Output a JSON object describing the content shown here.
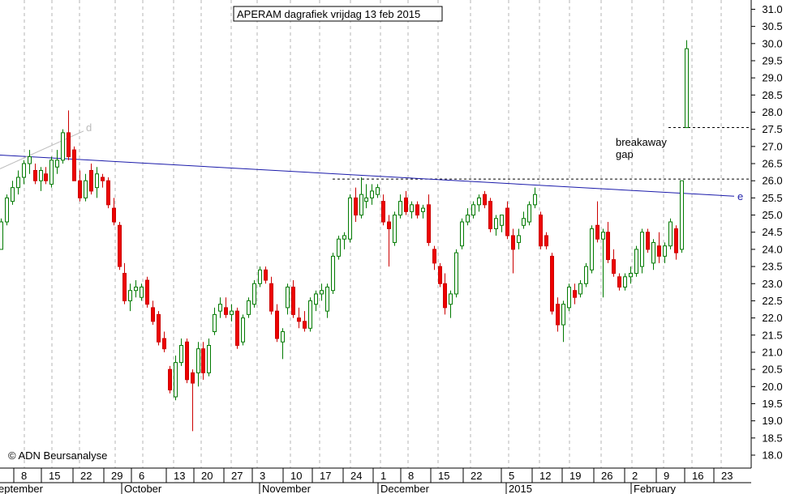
{
  "chart_data": {
    "type": "candlestick",
    "title": "APERAM dagrafiek vrijdag 13 feb 2015",
    "copyright": "© ADN Beursanalyse",
    "ylim": [
      17.5,
      31.2
    ],
    "y_ticks": [
      "18.0",
      "18.5",
      "19.0",
      "19.5",
      "20.0",
      "20.5",
      "21.0",
      "21.5",
      "22.0",
      "22.5",
      "23.0",
      "23.5",
      "24.0",
      "24.5",
      "25.0",
      "25.5",
      "26.0",
      "26.5",
      "27.0",
      "27.5",
      "28.0",
      "28.5",
      "29.0",
      "29.5",
      "30.0",
      "30.5",
      "31.0"
    ],
    "x_day_labels": [
      "8",
      "15",
      "22",
      "29",
      "6",
      "13",
      "20",
      "27",
      "3",
      "10",
      "17",
      "24",
      "1",
      "8",
      "15",
      "22",
      "5",
      "12",
      "19",
      "26",
      "2",
      "9",
      "16",
      "23"
    ],
    "x_month_labels": [
      "eptember",
      "October",
      "November",
      "December",
      "2015",
      "February"
    ],
    "annotations": {
      "breakaway_gap": [
        "breakaway",
        "gap"
      ],
      "trendline_e": "e",
      "trendline_d": "d"
    },
    "levels": {
      "gap_top": 27.55,
      "gap_bottom": 26.05
    },
    "trendline_e": {
      "start": 26.75,
      "end": 25.55
    },
    "trendline_d": {
      "start": 26.35,
      "end": 27.45
    },
    "candles": [
      {
        "o": 24.0,
        "h": 24.9,
        "l": 24.0,
        "c": 24.8
      },
      {
        "o": 24.8,
        "h": 25.6,
        "l": 24.7,
        "c": 25.5
      },
      {
        "o": 25.4,
        "h": 26.0,
        "l": 25.3,
        "c": 25.8
      },
      {
        "o": 25.8,
        "h": 26.3,
        "l": 25.6,
        "c": 26.1
      },
      {
        "o": 26.1,
        "h": 26.6,
        "l": 25.9,
        "c": 26.5
      },
      {
        "o": 26.5,
        "h": 26.9,
        "l": 26.2,
        "c": 26.7
      },
      {
        "o": 26.3,
        "h": 26.5,
        "l": 25.9,
        "c": 26.0
      },
      {
        "o": 26.0,
        "h": 26.4,
        "l": 25.7,
        "c": 26.3
      },
      {
        "o": 26.2,
        "h": 26.4,
        "l": 25.9,
        "c": 26.0
      },
      {
        "o": 25.9,
        "h": 26.7,
        "l": 25.8,
        "c": 26.6
      },
      {
        "o": 26.4,
        "h": 26.9,
        "l": 26.2,
        "c": 26.6
      },
      {
        "o": 26.6,
        "h": 27.5,
        "l": 26.5,
        "c": 27.4
      },
      {
        "o": 27.4,
        "h": 28.05,
        "l": 26.6,
        "c": 26.7
      },
      {
        "o": 26.9,
        "h": 27.0,
        "l": 26.0,
        "c": 26.0
      },
      {
        "o": 26.0,
        "h": 26.3,
        "l": 25.4,
        "c": 25.5
      },
      {
        "o": 25.5,
        "h": 26.2,
        "l": 25.4,
        "c": 26.0
      },
      {
        "o": 26.3,
        "h": 26.5,
        "l": 25.6,
        "c": 25.7
      },
      {
        "o": 25.8,
        "h": 26.4,
        "l": 25.5,
        "c": 26.2
      },
      {
        "o": 26.1,
        "h": 26.2,
        "l": 25.8,
        "c": 26.0
      },
      {
        "o": 26.0,
        "h": 26.1,
        "l": 25.2,
        "c": 25.3
      },
      {
        "o": 25.2,
        "h": 25.5,
        "l": 24.7,
        "c": 24.8
      },
      {
        "o": 24.7,
        "h": 24.8,
        "l": 23.4,
        "c": 23.5
      },
      {
        "o": 23.3,
        "h": 23.6,
        "l": 22.4,
        "c": 22.5
      },
      {
        "o": 22.5,
        "h": 23.0,
        "l": 22.2,
        "c": 22.8
      },
      {
        "o": 22.8,
        "h": 23.1,
        "l": 22.6,
        "c": 22.9
      },
      {
        "o": 22.6,
        "h": 23.0,
        "l": 22.5,
        "c": 22.9
      },
      {
        "o": 23.1,
        "h": 23.2,
        "l": 22.3,
        "c": 22.4
      },
      {
        "o": 22.3,
        "h": 22.5,
        "l": 21.8,
        "c": 21.9
      },
      {
        "o": 22.1,
        "h": 22.2,
        "l": 21.2,
        "c": 21.3
      },
      {
        "o": 21.4,
        "h": 21.6,
        "l": 21.0,
        "c": 21.1
      },
      {
        "o": 20.5,
        "h": 20.6,
        "l": 19.8,
        "c": 19.9
      },
      {
        "o": 19.7,
        "h": 20.9,
        "l": 19.6,
        "c": 20.7
      },
      {
        "o": 20.7,
        "h": 21.4,
        "l": 20.6,
        "c": 21.2
      },
      {
        "o": 21.3,
        "h": 21.4,
        "l": 20.1,
        "c": 20.2
      },
      {
        "o": 20.4,
        "h": 20.5,
        "l": 18.7,
        "c": 20.1
      },
      {
        "o": 20.4,
        "h": 21.3,
        "l": 20.0,
        "c": 21.1
      },
      {
        "o": 21.1,
        "h": 21.3,
        "l": 20.2,
        "c": 20.4
      },
      {
        "o": 20.4,
        "h": 21.4,
        "l": 20.3,
        "c": 21.2
      },
      {
        "o": 21.6,
        "h": 22.3,
        "l": 21.5,
        "c": 22.1
      },
      {
        "o": 22.2,
        "h": 22.6,
        "l": 22.0,
        "c": 22.4
      },
      {
        "o": 22.3,
        "h": 22.6,
        "l": 22.0,
        "c": 22.1
      },
      {
        "o": 22.1,
        "h": 22.4,
        "l": 21.9,
        "c": 22.2
      },
      {
        "o": 22.2,
        "h": 22.3,
        "l": 21.1,
        "c": 21.2
      },
      {
        "o": 21.3,
        "h": 22.1,
        "l": 21.2,
        "c": 22.0
      },
      {
        "o": 22.1,
        "h": 22.6,
        "l": 22.0,
        "c": 22.5
      },
      {
        "o": 22.4,
        "h": 23.1,
        "l": 22.3,
        "c": 23.0
      },
      {
        "o": 23.0,
        "h": 23.5,
        "l": 22.9,
        "c": 23.4
      },
      {
        "o": 23.4,
        "h": 23.5,
        "l": 23.0,
        "c": 23.1
      },
      {
        "o": 23.0,
        "h": 23.2,
        "l": 22.1,
        "c": 22.2
      },
      {
        "o": 22.2,
        "h": 22.4,
        "l": 21.3,
        "c": 21.4
      },
      {
        "o": 21.3,
        "h": 21.7,
        "l": 20.8,
        "c": 21.6
      },
      {
        "o": 22.3,
        "h": 23.0,
        "l": 22.1,
        "c": 22.9
      },
      {
        "o": 22.9,
        "h": 23.1,
        "l": 22.0,
        "c": 22.1
      },
      {
        "o": 22.0,
        "h": 22.3,
        "l": 21.7,
        "c": 21.9
      },
      {
        "o": 21.9,
        "h": 22.2,
        "l": 21.6,
        "c": 21.7
      },
      {
        "o": 21.7,
        "h": 22.6,
        "l": 21.6,
        "c": 22.5
      },
      {
        "o": 22.4,
        "h": 22.8,
        "l": 22.2,
        "c": 22.7
      },
      {
        "o": 22.7,
        "h": 23.0,
        "l": 22.5,
        "c": 22.8
      },
      {
        "o": 22.2,
        "h": 23.0,
        "l": 22.0,
        "c": 22.9
      },
      {
        "o": 22.8,
        "h": 23.9,
        "l": 22.7,
        "c": 23.8
      },
      {
        "o": 23.8,
        "h": 24.4,
        "l": 23.7,
        "c": 24.3
      },
      {
        "o": 24.3,
        "h": 24.5,
        "l": 24.0,
        "c": 24.4
      },
      {
        "o": 24.3,
        "h": 25.6,
        "l": 24.2,
        "c": 25.5
      },
      {
        "o": 25.5,
        "h": 25.8,
        "l": 24.8,
        "c": 25.0
      },
      {
        "o": 25.0,
        "h": 26.1,
        "l": 24.9,
        "c": 25.6
      },
      {
        "o": 25.4,
        "h": 25.9,
        "l": 25.2,
        "c": 25.5
      },
      {
        "o": 25.5,
        "h": 25.9,
        "l": 25.3,
        "c": 25.7
      },
      {
        "o": 25.6,
        "h": 25.9,
        "l": 25.5,
        "c": 25.8
      },
      {
        "o": 25.4,
        "h": 25.6,
        "l": 24.7,
        "c": 24.8
      },
      {
        "o": 24.8,
        "h": 25.0,
        "l": 23.5,
        "c": 24.6
      },
      {
        "o": 24.2,
        "h": 25.1,
        "l": 24.1,
        "c": 25.0
      },
      {
        "o": 25.0,
        "h": 25.6,
        "l": 24.9,
        "c": 25.4
      },
      {
        "o": 25.5,
        "h": 25.7,
        "l": 25.0,
        "c": 25.1
      },
      {
        "o": 25.1,
        "h": 25.4,
        "l": 24.9,
        "c": 25.3
      },
      {
        "o": 25.3,
        "h": 25.4,
        "l": 24.9,
        "c": 25.0
      },
      {
        "o": 25.1,
        "h": 25.3,
        "l": 24.9,
        "c": 25.2
      },
      {
        "o": 25.3,
        "h": 25.6,
        "l": 24.1,
        "c": 24.2
      },
      {
        "o": 24.0,
        "h": 24.1,
        "l": 23.4,
        "c": 23.6
      },
      {
        "o": 23.5,
        "h": 23.6,
        "l": 22.9,
        "c": 23.0
      },
      {
        "o": 23.0,
        "h": 23.3,
        "l": 22.1,
        "c": 22.3
      },
      {
        "o": 22.4,
        "h": 22.8,
        "l": 22.0,
        "c": 22.7
      },
      {
        "o": 22.7,
        "h": 24.0,
        "l": 22.6,
        "c": 23.9
      },
      {
        "o": 24.1,
        "h": 24.9,
        "l": 24.0,
        "c": 24.8
      },
      {
        "o": 24.8,
        "h": 25.2,
        "l": 24.7,
        "c": 25.0
      },
      {
        "o": 25.0,
        "h": 25.4,
        "l": 24.9,
        "c": 25.3
      },
      {
        "o": 25.3,
        "h": 25.6,
        "l": 25.1,
        "c": 25.5
      },
      {
        "o": 25.6,
        "h": 25.7,
        "l": 25.2,
        "c": 25.3
      },
      {
        "o": 25.4,
        "h": 25.5,
        "l": 24.5,
        "c": 24.6
      },
      {
        "o": 24.6,
        "h": 25.0,
        "l": 24.4,
        "c": 24.9
      },
      {
        "o": 24.7,
        "h": 25.0,
        "l": 24.5,
        "c": 25.0
      },
      {
        "o": 25.2,
        "h": 25.4,
        "l": 24.3,
        "c": 24.4
      },
      {
        "o": 24.4,
        "h": 24.6,
        "l": 23.3,
        "c": 24.0
      },
      {
        "o": 24.2,
        "h": 24.6,
        "l": 24.0,
        "c": 24.4
      },
      {
        "o": 24.7,
        "h": 25.1,
        "l": 24.6,
        "c": 24.9
      },
      {
        "o": 24.8,
        "h": 25.4,
        "l": 24.7,
        "c": 25.3
      },
      {
        "o": 25.3,
        "h": 25.8,
        "l": 25.2,
        "c": 25.6
      },
      {
        "o": 25.0,
        "h": 25.1,
        "l": 24.0,
        "c": 24.1
      },
      {
        "o": 24.4,
        "h": 24.5,
        "l": 24.0,
        "c": 24.1
      },
      {
        "o": 23.8,
        "h": 23.9,
        "l": 22.1,
        "c": 22.2
      },
      {
        "o": 22.4,
        "h": 22.6,
        "l": 21.6,
        "c": 21.8
      },
      {
        "o": 21.8,
        "h": 22.5,
        "l": 21.3,
        "c": 22.4
      },
      {
        "o": 22.3,
        "h": 23.0,
        "l": 22.2,
        "c": 22.9
      },
      {
        "o": 22.8,
        "h": 23.0,
        "l": 22.4,
        "c": 22.6
      },
      {
        "o": 22.7,
        "h": 23.1,
        "l": 22.6,
        "c": 23.0
      },
      {
        "o": 23.0,
        "h": 23.6,
        "l": 22.9,
        "c": 23.5
      },
      {
        "o": 23.4,
        "h": 24.7,
        "l": 23.3,
        "c": 24.6
      },
      {
        "o": 24.7,
        "h": 25.4,
        "l": 24.2,
        "c": 24.3
      },
      {
        "o": 24.3,
        "h": 24.6,
        "l": 22.6,
        "c": 24.5
      },
      {
        "o": 24.5,
        "h": 24.8,
        "l": 23.6,
        "c": 23.7
      },
      {
        "o": 23.7,
        "h": 24.0,
        "l": 23.2,
        "c": 23.3
      },
      {
        "o": 23.2,
        "h": 23.3,
        "l": 22.8,
        "c": 22.9
      },
      {
        "o": 22.9,
        "h": 23.3,
        "l": 22.8,
        "c": 23.2
      },
      {
        "o": 23.2,
        "h": 23.5,
        "l": 23.0,
        "c": 23.3
      },
      {
        "o": 23.3,
        "h": 24.1,
        "l": 23.2,
        "c": 24.0
      },
      {
        "o": 23.5,
        "h": 24.6,
        "l": 23.3,
        "c": 24.5
      },
      {
        "o": 24.5,
        "h": 24.6,
        "l": 23.9,
        "c": 24.0
      },
      {
        "o": 23.6,
        "h": 24.3,
        "l": 23.4,
        "c": 24.2
      },
      {
        "o": 24.1,
        "h": 24.5,
        "l": 23.6,
        "c": 23.8
      },
      {
        "o": 23.8,
        "h": 24.2,
        "l": 23.6,
        "c": 24.1
      },
      {
        "o": 24.1,
        "h": 24.9,
        "l": 24.0,
        "c": 24.8
      },
      {
        "o": 24.6,
        "h": 24.7,
        "l": 23.7,
        "c": 23.9
      },
      {
        "o": 24.0,
        "h": 26.0,
        "l": 23.9,
        "c": 26.0
      },
      {
        "o": 27.55,
        "h": 30.1,
        "l": 27.55,
        "c": 29.85
      }
    ]
  }
}
